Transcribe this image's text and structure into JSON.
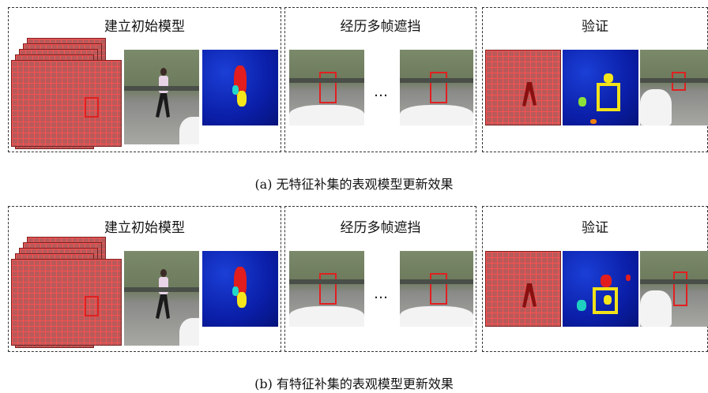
{
  "rows": [
    {
      "panels": {
        "build": "建立初始模型",
        "occlusion": "经历多帧遮挡",
        "verify": "验证"
      },
      "ellipsis": "…",
      "caption": "(a)  无特征补集的表观模型更新效果"
    },
    {
      "panels": {
        "build": "建立初始模型",
        "occlusion": "经历多帧遮挡",
        "verify": "验证"
      },
      "ellipsis": "…",
      "caption": "(b)  有特征补集的表观模型更新效果"
    }
  ]
}
